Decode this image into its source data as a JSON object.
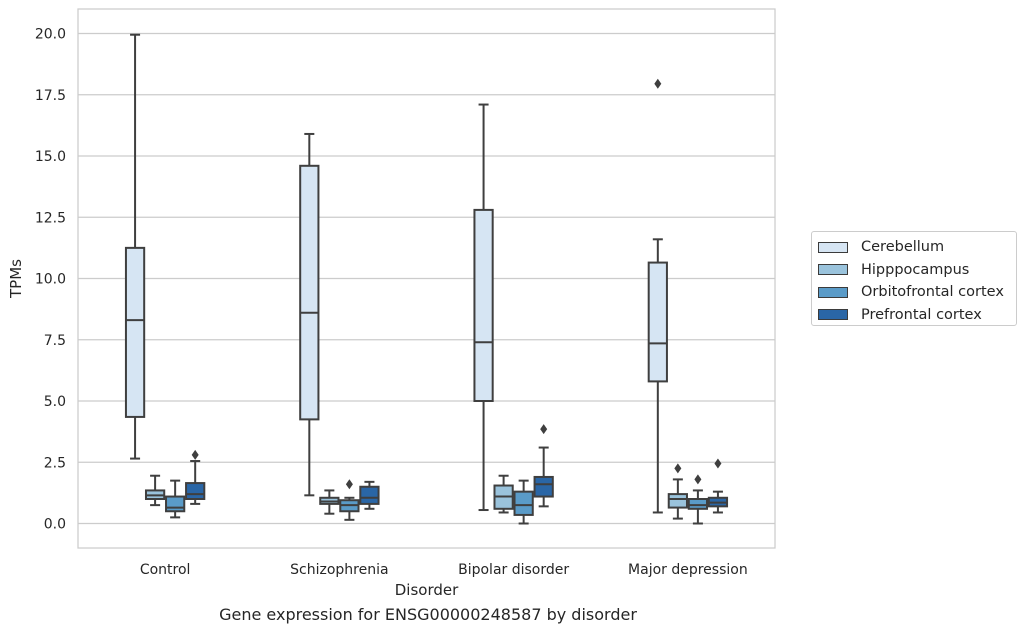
{
  "chart_data": {
    "type": "boxplot",
    "caption": "Gene expression for ENSG00000248587 by disorder",
    "xlabel": "Disorder",
    "ylabel": "TPMs",
    "ylim": [
      -1,
      21
    ],
    "yticks": [
      0.0,
      2.5,
      5.0,
      7.5,
      10.0,
      12.5,
      15.0,
      17.5,
      20.0
    ],
    "ytick_labels": [
      "0.0",
      "2.5",
      "5.0",
      "7.5",
      "10.0",
      "12.5",
      "15.0",
      "17.5",
      "20.0"
    ],
    "grid": true,
    "legend_position": "right",
    "categories": [
      "Control",
      "Schizophrenia",
      "Bipolar disorder",
      "Major depression"
    ],
    "series": [
      {
        "name": "Cerebellum",
        "color": "#d6e5f3",
        "boxes": [
          {
            "whisker_low": 2.65,
            "q1": 4.35,
            "median": 8.3,
            "q3": 11.25,
            "whisker_high": 19.95,
            "outliers": []
          },
          {
            "whisker_low": 1.15,
            "q1": 4.25,
            "median": 8.6,
            "q3": 14.6,
            "whisker_high": 15.9,
            "outliers": []
          },
          {
            "whisker_low": 0.55,
            "q1": 5.0,
            "median": 7.4,
            "q3": 12.8,
            "whisker_high": 17.1,
            "outliers": []
          },
          {
            "whisker_low": 0.45,
            "q1": 5.8,
            "median": 7.35,
            "q3": 10.65,
            "whisker_high": 11.6,
            "outliers": [
              17.95
            ]
          }
        ]
      },
      {
        "name": "Hipppocampus",
        "color": "#9ac3dc",
        "boxes": [
          {
            "whisker_low": 0.75,
            "q1": 1.0,
            "median": 1.15,
            "q3": 1.35,
            "whisker_high": 1.95,
            "outliers": []
          },
          {
            "whisker_low": 0.4,
            "q1": 0.8,
            "median": 0.9,
            "q3": 1.05,
            "whisker_high": 1.35,
            "outliers": []
          },
          {
            "whisker_low": 0.45,
            "q1": 0.6,
            "median": 1.1,
            "q3": 1.55,
            "whisker_high": 1.95,
            "outliers": []
          },
          {
            "whisker_low": 0.2,
            "q1": 0.65,
            "median": 1.0,
            "q3": 1.2,
            "whisker_high": 1.8,
            "outliers": [
              2.25
            ]
          }
        ]
      },
      {
        "name": "Orbitofrontal cortex",
        "color": "#5a9bc8",
        "boxes": [
          {
            "whisker_low": 0.25,
            "q1": 0.5,
            "median": 0.65,
            "q3": 1.1,
            "whisker_high": 1.75,
            "outliers": []
          },
          {
            "whisker_low": 0.15,
            "q1": 0.5,
            "median": 0.75,
            "q3": 0.95,
            "whisker_high": 1.05,
            "outliers": [
              1.6
            ]
          },
          {
            "whisker_low": 0.0,
            "q1": 0.35,
            "median": 0.75,
            "q3": 1.3,
            "whisker_high": 1.75,
            "outliers": []
          },
          {
            "whisker_low": 0.0,
            "q1": 0.6,
            "median": 0.75,
            "q3": 1.0,
            "whisker_high": 1.35,
            "outliers": [
              1.8
            ]
          }
        ]
      },
      {
        "name": "Prefrontal cortex",
        "color": "#2a66a6",
        "boxes": [
          {
            "whisker_low": 0.8,
            "q1": 1.0,
            "median": 1.2,
            "q3": 1.65,
            "whisker_high": 2.55,
            "outliers": [
              2.8
            ]
          },
          {
            "whisker_low": 0.6,
            "q1": 0.8,
            "median": 1.05,
            "q3": 1.5,
            "whisker_high": 1.7,
            "outliers": []
          },
          {
            "whisker_low": 0.7,
            "q1": 1.1,
            "median": 1.6,
            "q3": 1.9,
            "whisker_high": 3.1,
            "outliers": [
              3.85
            ]
          },
          {
            "whisker_low": 0.45,
            "q1": 0.7,
            "median": 0.85,
            "q3": 1.05,
            "whisker_high": 1.3,
            "outliers": [
              2.45
            ]
          }
        ]
      }
    ]
  }
}
